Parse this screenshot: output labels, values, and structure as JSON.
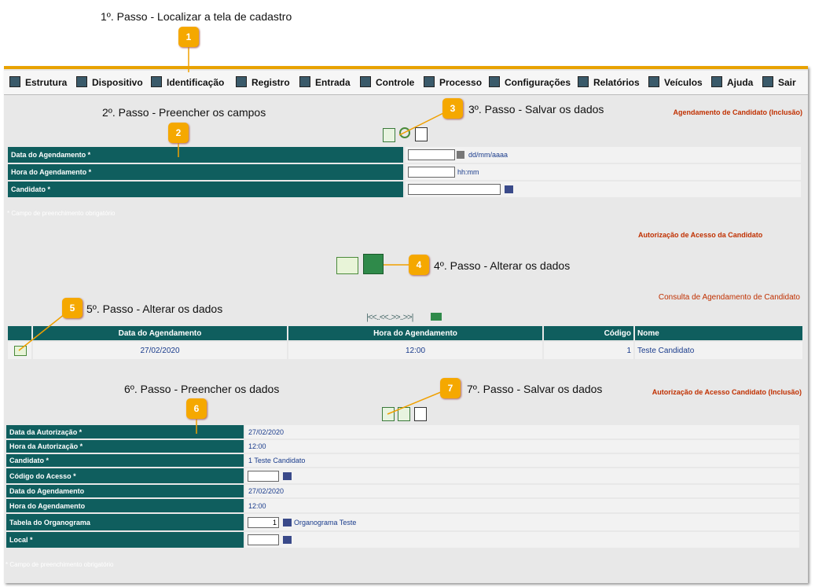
{
  "steps": [
    {
      "number": "1",
      "text": "1º. Passo - Localizar a tela de cadastro"
    },
    {
      "number": "2",
      "text": "2º. Passo - Preencher os campos"
    },
    {
      "number": "3",
      "text": "3º. Passo - Salvar os dados"
    },
    {
      "number": "4",
      "text": "4º. Passo - Alterar os dados"
    },
    {
      "number": "5",
      "text": "5º. Passo - Alterar os dados"
    },
    {
      "number": "6",
      "text": "6º. Passo - Preencher os dados"
    },
    {
      "number": "7",
      "text": "7º. Passo - Salvar os dados"
    }
  ],
  "menu": [
    "Estrutura",
    "Dispositivo",
    "Identificação",
    "Registro",
    "Entrada",
    "Controle",
    "Processo",
    "Configurações",
    "Relatórios",
    "Veículos",
    "Ajuda",
    "Sair"
  ],
  "section1": {
    "title": "Agendamento de Candidato (Inclusão)",
    "rows": [
      {
        "label": "Data do Agendamento *",
        "hint": "dd/mm/aaaa"
      },
      {
        "label": "Hora do Agendamento *",
        "hint": "hh:mm"
      },
      {
        "label": "Candidato *"
      }
    ],
    "note": "* Campo de preenchimento obrigatório"
  },
  "section2": {
    "title": "Autorização de Acesso da Candidato"
  },
  "section3": {
    "title": "Consulta de Agendamento de Candidato",
    "pager": "|<<..<<..>>..>>|",
    "table": {
      "headers": [
        "Data do Agendamento",
        "Hora do Agendamento",
        "Código",
        "Nome"
      ],
      "rows": [
        [
          "27/02/2020",
          "12:00",
          "1",
          "Teste Candidato"
        ]
      ]
    }
  },
  "section4": {
    "title": "Autorização de Acesso Candidato (Inclusão)",
    "rows": [
      {
        "label": "Data da Autorização *",
        "value": "27/02/2020"
      },
      {
        "label": "Hora da Autorização *",
        "value": "12:00"
      },
      {
        "label": "Candidato *",
        "value": "1 Teste Candidato"
      },
      {
        "label": "Código do Acesso *"
      },
      {
        "label": "Data do Agendamento",
        "value": "27/02/2020"
      },
      {
        "label": "Hora do Agendamento",
        "value": "12:00"
      },
      {
        "label": "Tabela do Organograma",
        "input": "1",
        "value": "Organograma Teste"
      },
      {
        "label": "Local *"
      }
    ],
    "note": "* Campo de preenchimento obrigatório"
  }
}
